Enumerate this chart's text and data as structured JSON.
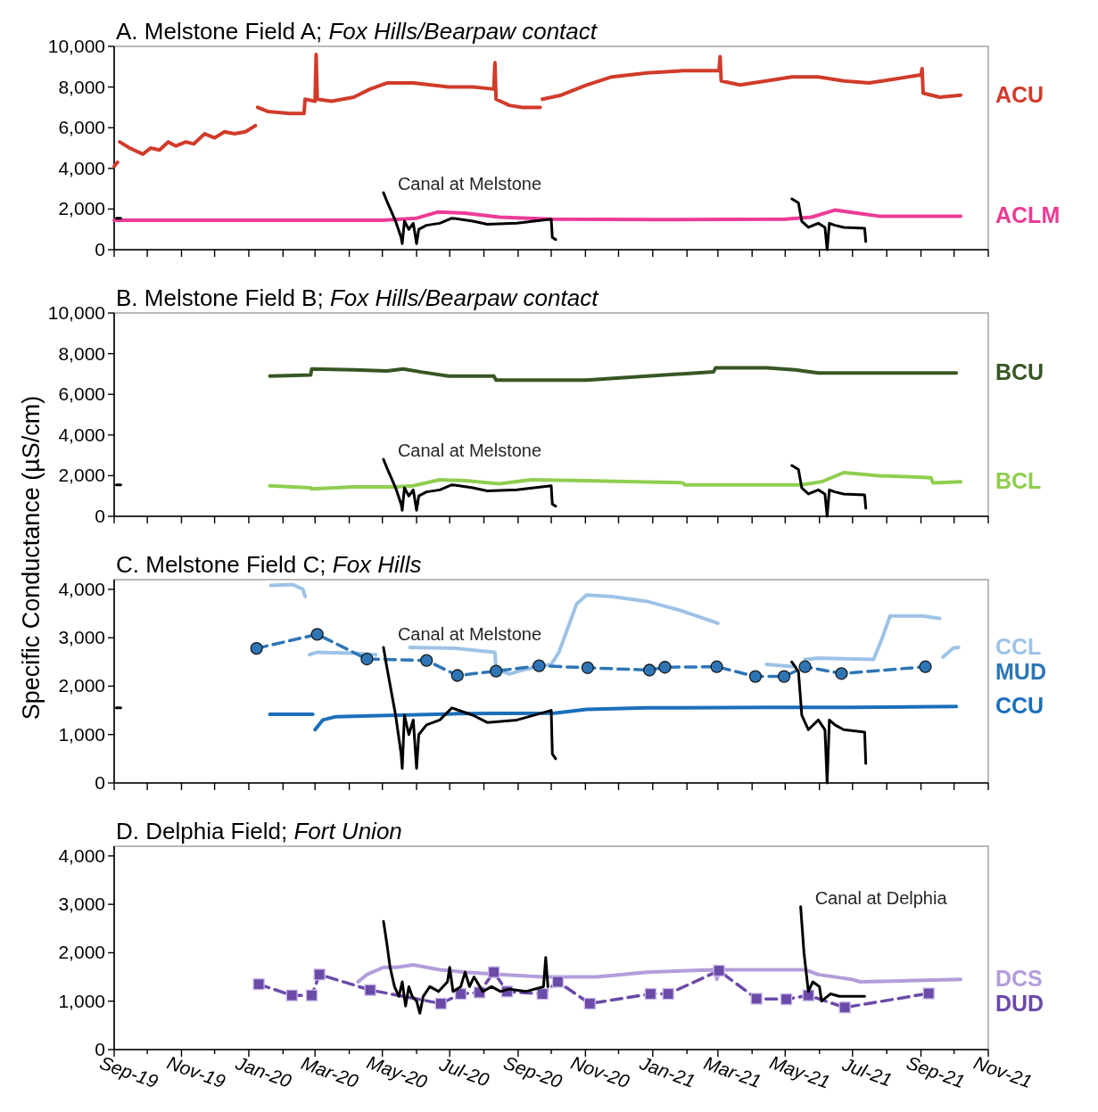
{
  "chart_data": [
    {
      "type": "line",
      "title": "A. Melstone Field A; Fox Hills/Bearpaw contact",
      "xlim": [
        "2019-09-01",
        "2021-11-01"
      ],
      "ylim": [
        0,
        10000
      ],
      "tick_labels": "y",
      "marker": "none",
      "yticks": [
        {
          "value": 0,
          "label": "0"
        },
        {
          "value": 2000,
          "label": "2,000"
        },
        {
          "value": 4000,
          "label": "4,000"
        },
        {
          "value": 6000,
          "label": "6,000"
        },
        {
          "value": 8000,
          "label": "8,000"
        },
        {
          "value": 10000,
          "label": "10,000"
        }
      ],
      "xticks": [
        {
          "value": "2019-09-01",
          "label": null
        },
        {
          "value": "2019-10-01",
          "label": null
        },
        {
          "value": "2019-11-01",
          "label": null
        },
        {
          "value": "2019-12-01",
          "label": null
        },
        {
          "value": "2020-01-01",
          "label": null
        },
        {
          "value": "2020-02-01",
          "label": null
        },
        {
          "value": "2020-03-01",
          "label": null
        },
        {
          "value": "2020-04-01",
          "label": null
        },
        {
          "value": "2020-05-01",
          "label": null
        },
        {
          "value": "2020-06-01",
          "label": null
        },
        {
          "value": "2020-07-01",
          "label": null
        },
        {
          "value": "2020-08-01",
          "label": null
        },
        {
          "value": "2020-09-01",
          "label": null
        },
        {
          "value": "2020-10-01",
          "label": null
        },
        {
          "value": "2020-11-01",
          "label": null
        },
        {
          "value": "2020-12-01",
          "label": null
        },
        {
          "value": "2021-01-01",
          "label": null
        },
        {
          "value": "2021-02-01",
          "label": null
        },
        {
          "value": "2021-03-01",
          "label": null
        },
        {
          "value": "2021-04-01",
          "label": null
        },
        {
          "value": "2021-05-01",
          "label": null
        },
        {
          "value": "2021-06-01",
          "label": null
        },
        {
          "value": "2021-07-01",
          "label": null
        },
        {
          "value": "2021-08-01",
          "label": null
        },
        {
          "value": "2021-09-01",
          "label": null
        },
        {
          "value": "2021-10-01",
          "label": null
        },
        {
          "value": "2021-11-01",
          "label": null
        }
      ],
      "series": [
        {
          "name": "ACU",
          "color": "#d13b2a",
          "x": [
            "2019-09-01",
            "2019-09-04",
            "2019-09-05",
            "2019-09-06",
            "2019-09-15",
            "2019-09-27",
            "2019-10-04",
            "2019-10-12",
            "2019-10-20",
            "2019-10-27",
            "2019-11-05",
            "2019-11-12",
            "2019-11-22",
            "2019-12-01",
            "2019-12-10",
            "2019-12-19",
            "2019-12-29",
            "2020-01-07",
            "2020-01-08",
            "2020-01-09",
            "2020-01-18",
            "2020-02-07",
            "2020-02-20",
            "2020-02-21",
            "2020-03-01",
            "2020-03-02",
            "2020-03-03",
            "2020-03-16",
            "2020-04-05",
            "2020-04-20",
            "2020-05-05",
            "2020-05-29",
            "2020-06-30",
            "2020-07-22",
            "2020-08-10",
            "2020-08-11",
            "2020-08-12",
            "2020-08-24",
            "2020-09-05",
            "2020-09-21",
            "2020-09-22",
            "2020-09-23",
            "2020-10-10",
            "2020-11-02",
            "2020-11-25",
            "2020-12-27",
            "2021-01-28",
            "2021-03-02",
            "2021-03-03",
            "2021-03-04",
            "2021-03-21",
            "2021-04-14",
            "2021-05-07",
            "2021-05-31",
            "2021-06-23",
            "2021-07-16",
            "2021-08-09",
            "2021-09-01",
            "2021-09-02",
            "2021-09-03",
            "2021-09-18",
            "2021-10-07"
          ],
          "values": [
            4100,
            4300,
            null,
            5300,
            5000,
            4700,
            5000,
            4900,
            5300,
            5100,
            5300,
            5200,
            5700,
            5500,
            5800,
            5700,
            5800,
            6100,
            null,
            7000,
            6800,
            6700,
            6700,
            7400,
            7300,
            9600,
            7400,
            7300,
            7500,
            7900,
            8200,
            8200,
            8000,
            8000,
            7900,
            9200,
            7400,
            7100,
            7000,
            7000,
            null,
            7400,
            7600,
            8100,
            8500,
            8700,
            8800,
            8800,
            9500,
            8300,
            8100,
            8300,
            8500,
            8500,
            8300,
            8200,
            8400,
            8600,
            8900,
            7700,
            7500,
            7600
          ]
        },
        {
          "name": "ACLM",
          "color": "#ec3b96",
          "x": [
            "2019-09-01",
            "2020-01-01",
            "2020-05-01",
            "2020-06-01",
            "2020-06-20",
            "2020-07-15",
            "2020-08-15",
            "2020-10-01",
            "2021-01-01",
            "2021-05-01",
            "2021-05-25",
            "2021-06-15",
            "2021-07-05",
            "2021-07-25",
            "2021-10-07"
          ],
          "values": [
            1450,
            1450,
            1450,
            1550,
            1850,
            1800,
            1600,
            1500,
            1480,
            1500,
            1600,
            1950,
            1800,
            1650,
            1650
          ]
        },
        {
          "name": "Canal at Melstone",
          "color": "#000000",
          "x": [
            "2019-09-03",
            "2019-09-07",
            "2019-09-08",
            "2020-05-02",
            "2020-05-05",
            "2020-05-09",
            "2020-05-13",
            "2020-05-18",
            "2020-05-19",
            "2020-05-21",
            "2020-05-25",
            "2020-05-29",
            "2020-06-01",
            "2020-06-03",
            "2020-06-10",
            "2020-06-22",
            "2020-07-03",
            "2020-07-22",
            "2020-08-04",
            "2020-08-31",
            "2020-10-01",
            "2020-10-02",
            "2020-10-05",
            "2020-10-06",
            "2021-05-07",
            "2021-05-13",
            "2021-05-16",
            "2021-05-22",
            "2021-05-31",
            "2021-06-06",
            "2021-06-08",
            "2021-06-10",
            "2021-06-15",
            "2021-06-23",
            "2021-07-12",
            "2021-07-13"
          ],
          "values": [
            1550,
            1550,
            null,
            2800,
            2400,
            1900,
            1400,
            600,
            300,
            1400,
            1000,
            1300,
            300,
            1000,
            1200,
            1300,
            1550,
            1400,
            1250,
            1300,
            1500,
            600,
            500,
            null,
            2500,
            2300,
            1400,
            1100,
            1300,
            1100,
            0,
            1300,
            1200,
            1100,
            1050,
            400
          ]
        }
      ]
    },
    {
      "type": "line",
      "title": "B. Melstone Field B; Fox Hills/Bearpaw contact",
      "ylabel": "Specific Conductance (µS/cm)",
      "xlim": [
        "2019-09-01",
        "2021-11-01"
      ],
      "ylim": [
        0,
        10000
      ],
      "tick_labels": "y",
      "marker": "none",
      "yticks": [
        {
          "value": 0,
          "label": "0"
        },
        {
          "value": 2000,
          "label": "2,000"
        },
        {
          "value": 4000,
          "label": "4,000"
        },
        {
          "value": 6000,
          "label": "6,000"
        },
        {
          "value": 8000,
          "label": "8,000"
        },
        {
          "value": 10000,
          "label": "10,000"
        }
      ],
      "xticks": [
        {
          "value": "2019-09-01",
          "label": null
        },
        {
          "value": "2019-10-01",
          "label": null
        },
        {
          "value": "2019-11-01",
          "label": null
        },
        {
          "value": "2019-12-01",
          "label": null
        },
        {
          "value": "2020-01-01",
          "label": null
        },
        {
          "value": "2020-02-01",
          "label": null
        },
        {
          "value": "2020-03-01",
          "label": null
        },
        {
          "value": "2020-04-01",
          "label": null
        },
        {
          "value": "2020-05-01",
          "label": null
        },
        {
          "value": "2020-06-01",
          "label": null
        },
        {
          "value": "2020-07-01",
          "label": null
        },
        {
          "value": "2020-08-01",
          "label": null
        },
        {
          "value": "2020-09-01",
          "label": null
        },
        {
          "value": "2020-10-01",
          "label": null
        },
        {
          "value": "2020-11-01",
          "label": null
        },
        {
          "value": "2020-12-01",
          "label": null
        },
        {
          "value": "2021-01-01",
          "label": null
        },
        {
          "value": "2021-02-01",
          "label": null
        },
        {
          "value": "2021-03-01",
          "label": null
        },
        {
          "value": "2021-04-01",
          "label": null
        },
        {
          "value": "2021-05-01",
          "label": null
        },
        {
          "value": "2021-06-01",
          "label": null
        },
        {
          "value": "2021-07-01",
          "label": null
        },
        {
          "value": "2021-08-01",
          "label": null
        },
        {
          "value": "2021-09-01",
          "label": null
        },
        {
          "value": "2021-10-01",
          "label": null
        },
        {
          "value": "2021-11-01",
          "label": null
        }
      ],
      "series": [
        {
          "name": "BCU",
          "color": "#375623",
          "x": [
            "2020-01-20",
            "2020-02-26",
            "2020-02-27",
            "2020-04-05",
            "2020-05-05",
            "2020-05-20",
            "2020-06-05",
            "2020-06-30",
            "2020-08-10",
            "2020-08-12",
            "2020-09-24",
            "2020-11-02",
            "2020-12-27",
            "2021-02-25",
            "2021-02-27",
            "2021-04-14",
            "2021-05-10",
            "2021-05-31",
            "2021-08-09",
            "2021-10-03"
          ],
          "values": [
            6900,
            6950,
            7250,
            7200,
            7150,
            7250,
            7100,
            6900,
            6900,
            6700,
            6700,
            6700,
            6900,
            7100,
            7300,
            7300,
            7200,
            7050,
            7050,
            7050
          ]
        },
        {
          "name": "BCL",
          "color": "#8fce4f",
          "x": [
            "2020-01-20",
            "2020-02-26",
            "2020-02-27",
            "2020-04-05",
            "2020-05-13",
            "2020-05-29",
            "2020-06-22",
            "2020-07-15",
            "2020-08-15",
            "2020-09-13",
            "2020-10-31",
            "2020-12-17",
            "2021-01-28",
            "2021-01-30",
            "2021-03-06",
            "2021-05-15",
            "2021-06-03",
            "2021-06-23",
            "2021-07-25",
            "2021-08-18",
            "2021-09-10",
            "2021-09-12",
            "2021-10-07"
          ],
          "values": [
            1500,
            1400,
            1350,
            1450,
            1450,
            1500,
            1800,
            1750,
            1600,
            1800,
            1750,
            1700,
            1650,
            1550,
            1550,
            1550,
            1700,
            2150,
            2000,
            1950,
            1900,
            1650,
            1700
          ]
        },
        {
          "name": "Canal at Melstone",
          "color": "#000000",
          "x": [
            "2019-09-03",
            "2019-09-07",
            "2019-09-08",
            "2020-05-02",
            "2020-05-05",
            "2020-05-09",
            "2020-05-13",
            "2020-05-18",
            "2020-05-19",
            "2020-05-21",
            "2020-05-25",
            "2020-05-29",
            "2020-06-01",
            "2020-06-03",
            "2020-06-10",
            "2020-06-22",
            "2020-07-03",
            "2020-07-22",
            "2020-08-04",
            "2020-08-31",
            "2020-10-01",
            "2020-10-02",
            "2020-10-05",
            "2020-10-06",
            "2021-05-07",
            "2021-05-13",
            "2021-05-16",
            "2021-05-22",
            "2021-05-31",
            "2021-06-06",
            "2021-06-08",
            "2021-06-10",
            "2021-06-15",
            "2021-06-23",
            "2021-07-12",
            "2021-07-13"
          ],
          "values": [
            1550,
            1550,
            null,
            2800,
            2400,
            1900,
            1400,
            600,
            300,
            1400,
            1000,
            1300,
            300,
            1000,
            1200,
            1300,
            1550,
            1400,
            1250,
            1300,
            1500,
            600,
            500,
            null,
            2500,
            2300,
            1400,
            1100,
            1300,
            1100,
            0,
            1300,
            1200,
            1100,
            1050,
            400
          ]
        }
      ]
    },
    {
      "type": "line",
      "title": "C. Melstone Field C; Fox Hills",
      "xlim": [
        "2019-09-01",
        "2021-11-01"
      ],
      "ylim": [
        0,
        4200
      ],
      "tick_labels": "y",
      "marker": "none",
      "yticks": [
        {
          "value": 0,
          "label": "0"
        },
        {
          "value": 1000,
          "label": "1,000"
        },
        {
          "value": 2000,
          "label": "2,000"
        },
        {
          "value": 3000,
          "label": "3,000"
        },
        {
          "value": 4000,
          "label": "4,000"
        }
      ],
      "xticks": [
        {
          "value": "2019-09-01",
          "label": null
        },
        {
          "value": "2019-10-01",
          "label": null
        },
        {
          "value": "2019-11-01",
          "label": null
        },
        {
          "value": "2019-12-01",
          "label": null
        },
        {
          "value": "2020-01-01",
          "label": null
        },
        {
          "value": "2020-02-01",
          "label": null
        },
        {
          "value": "2020-03-01",
          "label": null
        },
        {
          "value": "2020-04-01",
          "label": null
        },
        {
          "value": "2020-05-01",
          "label": null
        },
        {
          "value": "2020-06-01",
          "label": null
        },
        {
          "value": "2020-07-01",
          "label": null
        },
        {
          "value": "2020-08-01",
          "label": null
        },
        {
          "value": "2020-09-01",
          "label": null
        },
        {
          "value": "2020-10-01",
          "label": null
        },
        {
          "value": "2020-11-01",
          "label": null
        },
        {
          "value": "2020-12-01",
          "label": null
        },
        {
          "value": "2021-01-01",
          "label": null
        },
        {
          "value": "2021-02-01",
          "label": null
        },
        {
          "value": "2021-03-01",
          "label": null
        },
        {
          "value": "2021-04-01",
          "label": null
        },
        {
          "value": "2021-05-01",
          "label": null
        },
        {
          "value": "2021-06-01",
          "label": null
        },
        {
          "value": "2021-07-01",
          "label": null
        },
        {
          "value": "2021-08-01",
          "label": null
        },
        {
          "value": "2021-09-01",
          "label": null
        },
        {
          "value": "2021-10-01",
          "label": null
        },
        {
          "value": "2021-11-01",
          "label": null
        }
      ],
      "series": [
        {
          "name": "CCL",
          "color": "#9dc3e6",
          "x": [
            "2020-01-21",
            "2020-02-10",
            "2020-02-19",
            "2020-02-21",
            "2020-02-23",
            "2020-02-25",
            "2020-03-03",
            "2020-04-05",
            "2020-04-25",
            "2020-04-27",
            "2020-05-26",
            "2020-07-06",
            "2020-08-11",
            "2020-08-12",
            "2020-08-24",
            "2020-09-08",
            "2020-10-01",
            "2020-10-08",
            "2020-10-16",
            "2020-10-24",
            "2020-11-02",
            "2020-11-25",
            "2020-12-27",
            "2021-01-28",
            "2021-03-01",
            "2021-03-02",
            "2021-04-14",
            "2021-05-10",
            "2021-05-11",
            "2021-05-19",
            "2021-05-31",
            "2021-07-20",
            "2021-07-28",
            "2021-08-04",
            "2021-09-02",
            "2021-09-18",
            "2021-09-19",
            "2021-09-21",
            "2021-09-30",
            "2021-10-05"
          ],
          "values": [
            4080,
            4100,
            4000,
            3850,
            null,
            2650,
            2700,
            2680,
            2650,
            null,
            2800,
            2780,
            2700,
            2350,
            2250,
            2350,
            2450,
            2700,
            3200,
            3700,
            3880,
            3850,
            3750,
            3550,
            3300,
            null,
            2450,
            2400,
            null,
            2550,
            2580,
            2550,
            3000,
            3450,
            3450,
            3400,
            null,
            2600,
            2780,
            2800
          ]
        },
        {
          "name": "MUD",
          "color": "#2e75b6",
          "marker": "circle",
          "line_style": "dashed",
          "x": [
            "2020-01-08",
            "2020-03-03",
            "2020-04-17",
            "2020-06-10",
            "2020-07-08",
            "2020-08-12",
            "2020-09-20",
            "2020-11-03",
            "2020-12-29",
            "2021-01-12",
            "2021-02-28",
            "2021-04-04",
            "2021-04-30",
            "2021-05-19",
            "2021-06-21",
            "2021-09-05"
          ],
          "values": [
            2780,
            3070,
            2560,
            2530,
            2220,
            2310,
            2420,
            2380,
            2330,
            2390,
            2400,
            2200,
            2200,
            2400,
            2260,
            2400
          ]
        },
        {
          "name": "CCU",
          "color": "#1a6fba",
          "x": [
            "2020-01-20",
            "2020-02-28",
            "2020-02-29",
            "2020-03-01",
            "2020-03-08",
            "2020-03-20",
            "2020-04-28",
            "2020-07-08",
            "2020-10-04",
            "2020-11-02",
            "2020-12-27",
            "2021-04-14",
            "2021-06-30",
            "2021-10-03"
          ],
          "values": [
            1420,
            1420,
            null,
            1100,
            1300,
            1370,
            1390,
            1430,
            1440,
            1520,
            1550,
            1560,
            1560,
            1580
          ]
        },
        {
          "name": "Canal at Melstone",
          "color": "#000000",
          "x": [
            "2019-09-03",
            "2019-09-07",
            "2019-09-08",
            "2020-05-02",
            "2020-05-05",
            "2020-05-09",
            "2020-05-13",
            "2020-05-18",
            "2020-05-19",
            "2020-05-21",
            "2020-05-25",
            "2020-05-29",
            "2020-06-01",
            "2020-06-03",
            "2020-06-10",
            "2020-06-22",
            "2020-07-03",
            "2020-07-22",
            "2020-08-04",
            "2020-08-31",
            "2020-10-01",
            "2020-10-02",
            "2020-10-05",
            "2020-10-06",
            "2021-05-07",
            "2021-05-13",
            "2021-05-16",
            "2021-05-22",
            "2021-05-31",
            "2021-06-06",
            "2021-06-08",
            "2021-06-10",
            "2021-06-15",
            "2021-06-23",
            "2021-07-12",
            "2021-07-13"
          ],
          "values": [
            1550,
            1550,
            null,
            2800,
            2400,
            1900,
            1400,
            600,
            300,
            1400,
            1000,
            1300,
            300,
            1000,
            1200,
            1300,
            1550,
            1400,
            1250,
            1300,
            1500,
            600,
            500,
            null,
            2500,
            2300,
            1400,
            1100,
            1300,
            1100,
            0,
            1300,
            1200,
            1100,
            1050,
            400
          ]
        }
      ]
    },
    {
      "type": "line",
      "title": "D. Delphia Field; Fort Union",
      "xlim": [
        "2019-09-01",
        "2021-11-01"
      ],
      "ylim": [
        0,
        4200
      ],
      "marker": "none",
      "yticks": [
        {
          "value": 0,
          "label": "0"
        },
        {
          "value": 1000,
          "label": "1,000"
        },
        {
          "value": 2000,
          "label": "2,000"
        },
        {
          "value": 3000,
          "label": "3,000"
        },
        {
          "value": 4000,
          "label": "4,000"
        }
      ],
      "xticks": [
        {
          "value": "2019-09-01",
          "label": "Sep-19"
        },
        {
          "value": "2019-10-01",
          "label": null
        },
        {
          "value": "2019-11-01",
          "label": "Nov-19"
        },
        {
          "value": "2019-12-01",
          "label": null
        },
        {
          "value": "2020-01-01",
          "label": "Jan-20"
        },
        {
          "value": "2020-02-01",
          "label": null
        },
        {
          "value": "2020-03-01",
          "label": "Mar-20"
        },
        {
          "value": "2020-04-01",
          "label": null
        },
        {
          "value": "2020-05-01",
          "label": "May-20"
        },
        {
          "value": "2020-06-01",
          "label": null
        },
        {
          "value": "2020-07-01",
          "label": "Jul-20"
        },
        {
          "value": "2020-08-01",
          "label": null
        },
        {
          "value": "2020-09-01",
          "label": "Sep-20"
        },
        {
          "value": "2020-10-01",
          "label": null
        },
        {
          "value": "2020-11-01",
          "label": "Nov-20"
        },
        {
          "value": "2020-12-01",
          "label": null
        },
        {
          "value": "2021-01-01",
          "label": "Jan-21"
        },
        {
          "value": "2021-02-01",
          "label": null
        },
        {
          "value": "2021-03-01",
          "label": "Mar-21"
        },
        {
          "value": "2021-04-01",
          "label": null
        },
        {
          "value": "2021-05-01",
          "label": "May-21"
        },
        {
          "value": "2021-06-01",
          "label": null
        },
        {
          "value": "2021-07-01",
          "label": "Jul-21"
        },
        {
          "value": "2021-08-01",
          "label": null
        },
        {
          "value": "2021-09-01",
          "label": "Sep-21"
        },
        {
          "value": "2021-10-01",
          "label": null
        },
        {
          "value": "2021-11-01",
          "label": "Nov-21"
        }
      ],
      "series": [
        {
          "name": "DCS",
          "color": "#b39ddb",
          "x": [
            "2020-04-09",
            "2020-04-17",
            "2020-05-02",
            "2020-05-14",
            "2020-05-29",
            "2020-06-22",
            "2020-07-15",
            "2020-08-15",
            "2020-09-23",
            "2020-11-11",
            "2020-12-27",
            "2021-02-27",
            "2021-02-28",
            "2021-03-03",
            "2021-04-14",
            "2021-05-19",
            "2021-05-31",
            "2021-06-30",
            "2021-07-08",
            "2021-08-16",
            "2021-10-07"
          ],
          "values": [
            1400,
            1550,
            1700,
            1700,
            1750,
            1650,
            1600,
            1550,
            1500,
            1500,
            1600,
            1650,
            1450,
            1650,
            1650,
            1650,
            1550,
            1450,
            1400,
            1420,
            1450
          ]
        },
        {
          "name": "DUD",
          "color": "#6b4aa8",
          "marker": "square",
          "line_style": "dashed",
          "x": [
            "2020-01-10",
            "2020-02-09",
            "2020-02-27",
            "2020-03-05",
            "2020-04-20",
            "2020-06-23",
            "2020-07-11",
            "2020-07-28",
            "2020-08-10",
            "2020-08-22",
            "2020-09-23",
            "2020-10-07",
            "2020-11-05",
            "2020-12-30",
            "2021-01-15",
            "2021-03-02",
            "2021-04-05",
            "2021-05-02",
            "2021-05-22",
            "2021-06-24",
            "2021-09-08"
          ],
          "values": [
            1350,
            1120,
            1120,
            1550,
            1230,
            950,
            1150,
            1180,
            1600,
            1200,
            1150,
            1400,
            950,
            1150,
            1150,
            1630,
            1050,
            1040,
            1120,
            870,
            1160
          ]
        },
        {
          "name": "Canal at Delphia",
          "color": "#000000",
          "x": [
            "2020-05-02",
            "2020-05-05",
            "2020-05-08",
            "2020-05-12",
            "2020-05-16",
            "2020-05-19",
            "2020-05-22",
            "2020-05-25",
            "2020-05-28",
            "2020-06-01",
            "2020-06-04",
            "2020-06-07",
            "2020-06-13",
            "2020-06-21",
            "2020-06-29",
            "2020-07-01",
            "2020-07-04",
            "2020-07-11",
            "2020-07-15",
            "2020-07-19",
            "2020-07-23",
            "2020-07-31",
            "2020-08-08",
            "2020-08-16",
            "2020-08-24",
            "2020-09-08",
            "2020-09-24",
            "2020-09-26",
            "2020-09-28",
            "2020-09-29",
            "2021-05-15",
            "2021-05-18",
            "2021-05-22",
            "2021-05-26",
            "2021-06-01",
            "2021-06-03",
            "2021-06-11",
            "2021-06-19",
            "2021-07-01",
            "2021-07-12"
          ],
          "values": [
            2650,
            2200,
            1700,
            1300,
            1100,
            1400,
            900,
            1300,
            1100,
            1000,
            750,
            1100,
            1300,
            1200,
            1400,
            1700,
            1200,
            1300,
            1600,
            1300,
            1500,
            1200,
            1300,
            1200,
            1250,
            1200,
            1300,
            1900,
            1300,
            null,
            2950,
            2000,
            1200,
            1400,
            1300,
            1000,
            1150,
            1100,
            1100,
            1100
          ]
        }
      ]
    }
  ]
}
